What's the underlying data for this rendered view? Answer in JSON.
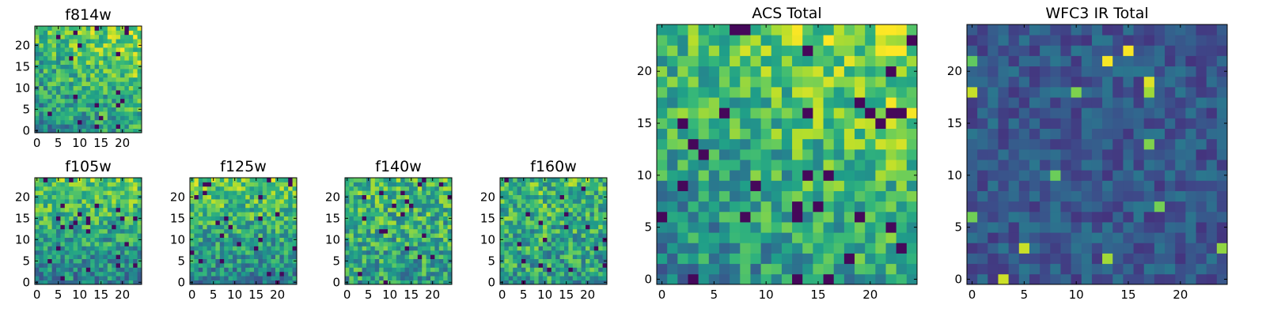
{
  "figure": {
    "description": "Image panels of pixel maps in several HST filters"
  },
  "chart_data": [
    {
      "type": "heatmap",
      "id": "f814w",
      "title": "f814w",
      "grid": [
        25,
        25
      ],
      "xticks": [
        0,
        5,
        10,
        15,
        20
      ],
      "yticks": [
        0,
        5,
        10,
        15,
        20
      ],
      "colormap": "viridis",
      "pattern": "gradient-up-right",
      "seed": 11
    },
    {
      "type": "heatmap",
      "id": "f105w",
      "title": "f105w",
      "grid": [
        25,
        25
      ],
      "xticks": [
        0,
        5,
        10,
        15,
        20
      ],
      "yticks": [
        0,
        5,
        10,
        15,
        20
      ],
      "colormap": "viridis",
      "pattern": "gradient-up",
      "seed": 23
    },
    {
      "type": "heatmap",
      "id": "f125w",
      "title": "f125w",
      "grid": [
        25,
        25
      ],
      "xticks": [
        0,
        5,
        10,
        15,
        20
      ],
      "yticks": [
        0,
        5,
        10,
        15,
        20
      ],
      "colormap": "viridis",
      "pattern": "gradient-up",
      "seed": 37
    },
    {
      "type": "heatmap",
      "id": "f140w",
      "title": "f140w",
      "grid": [
        25,
        25
      ],
      "xticks": [
        0,
        5,
        10,
        15,
        20
      ],
      "yticks": [
        0,
        5,
        10,
        15,
        20
      ],
      "colormap": "viridis",
      "pattern": "noisy-mid",
      "seed": 41
    },
    {
      "type": "heatmap",
      "id": "f160w",
      "title": "f160w",
      "grid": [
        25,
        25
      ],
      "xticks": [
        0,
        5,
        10,
        15,
        20
      ],
      "yticks": [
        0,
        5,
        10,
        15,
        20
      ],
      "colormap": "viridis",
      "pattern": "noisy-mid",
      "seed": 53
    },
    {
      "type": "heatmap",
      "id": "acs-total",
      "title": "ACS Total",
      "grid": [
        25,
        25
      ],
      "xticks": [
        0,
        5,
        10,
        15,
        20
      ],
      "yticks": [
        0,
        5,
        10,
        15,
        20
      ],
      "colormap": "viridis",
      "pattern": "gradient-up-right",
      "seed": 67
    },
    {
      "type": "heatmap",
      "id": "wfc3-ir-total",
      "title": "WFC3 IR Total",
      "grid": [
        25,
        25
      ],
      "xticks": [
        0,
        5,
        10,
        15,
        20
      ],
      "yticks": [
        0,
        5,
        10,
        15,
        20
      ],
      "colormap": "viridis",
      "pattern": "dark-sparse",
      "seed": 79
    }
  ]
}
